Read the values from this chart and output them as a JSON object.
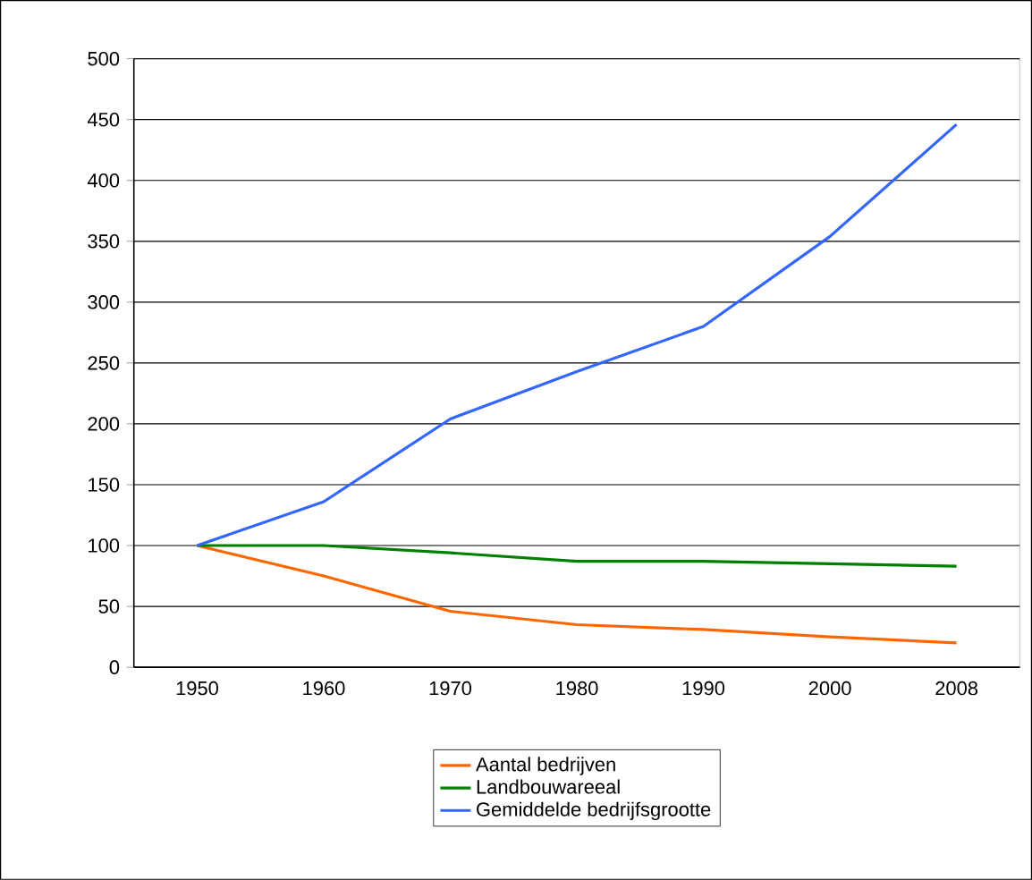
{
  "chart_data": {
    "type": "line",
    "categories": [
      "1950",
      "1960",
      "1970",
      "1980",
      "1990",
      "2000",
      "2008"
    ],
    "series": [
      {
        "name": "Aantal bedrijven",
        "color": "#ff6600",
        "values": [
          100,
          75,
          46,
          35,
          31,
          25,
          20
        ]
      },
      {
        "name": "Landbouwareeal",
        "color": "#008000",
        "values": [
          100,
          100,
          94,
          87,
          87,
          85,
          83
        ]
      },
      {
        "name": "Gemiddelde bedrijfsgrootte",
        "color": "#3366ff",
        "values": [
          100,
          136,
          204,
          243,
          280,
          354,
          446
        ]
      }
    ],
    "ylim": [
      0,
      500
    ],
    "yticks": [
      0,
      50,
      100,
      150,
      200,
      250,
      300,
      350,
      400,
      450,
      500
    ],
    "grid": "y",
    "legend": "bottom",
    "marker": "none",
    "line_style": "solid"
  }
}
